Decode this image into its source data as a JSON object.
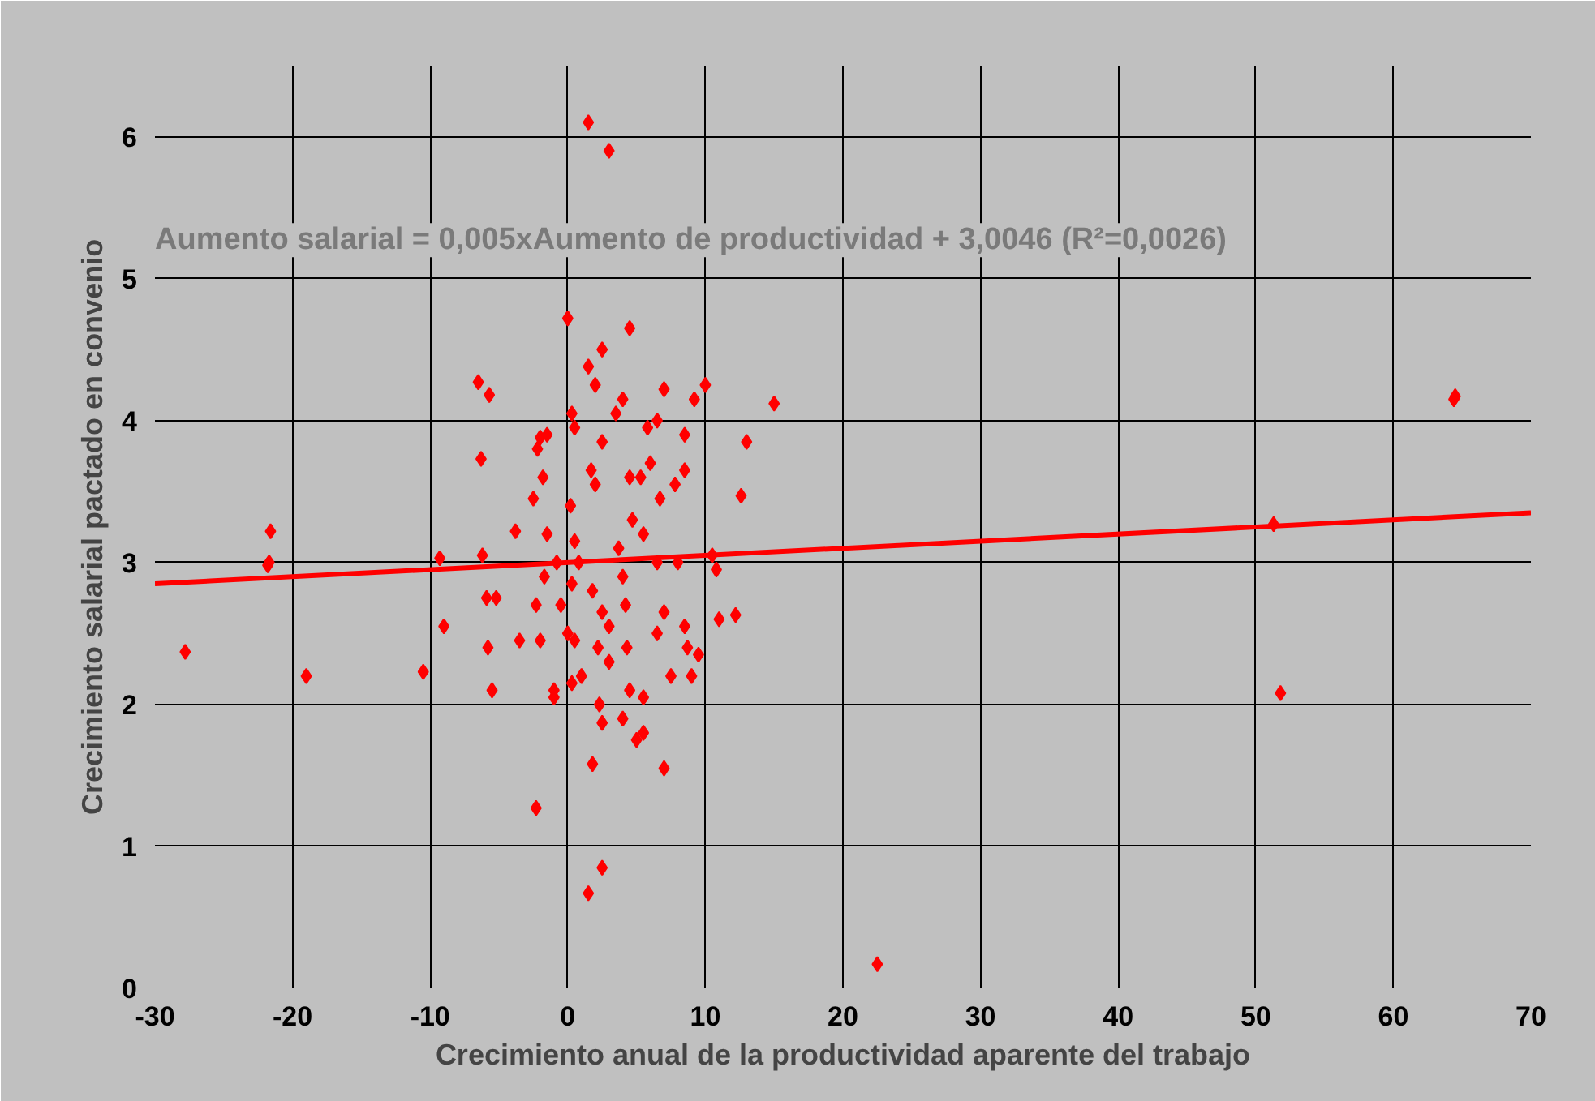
{
  "chart_data": {
    "type": "scatter",
    "xlabel": "Crecimiento anual de la productividad aparente del trabajo",
    "ylabel": "Crecimiento salarial pactado en convenio",
    "annotations": [
      "Aumento salarial = 0,005xAumento de productividad + 3,0046 (R²=0,0026)"
    ],
    "xlim": [
      -30,
      70
    ],
    "ylim": [
      0,
      6.5
    ],
    "xticks": [
      -30,
      -20,
      -10,
      0,
      10,
      20,
      30,
      40,
      50,
      60,
      70
    ],
    "yticks": [
      0,
      1,
      2,
      3,
      4,
      5,
      6
    ],
    "grid": true,
    "marker": "diamond",
    "series": [
      {
        "color": "#ff0000",
        "x": [
          -27.8,
          -21.6,
          -21.8,
          -21.7,
          -19,
          -10.5,
          -9.3,
          -9,
          -6.5,
          -6.3,
          -6.2,
          -5.9,
          -5.7,
          -5.5,
          -5.8,
          -5.2,
          -3.8,
          -3.5,
          -2.5,
          -2.2,
          -2,
          -1.8,
          -1.5,
          -2.3,
          -2,
          -1.7,
          -1,
          -1,
          -0.8,
          -0.5,
          -2.3,
          -1.5,
          0,
          0.3,
          0.5,
          0.2,
          0.5,
          0.8,
          0.3,
          0,
          0.5,
          1,
          0.3,
          1.5,
          3,
          1.5,
          2,
          2.5,
          1.7,
          2,
          2.5,
          1.8,
          2.5,
          3,
          2.2,
          3,
          2.3,
          1.8,
          2.5,
          2.5,
          1.5,
          4.5,
          3.5,
          4,
          4.5,
          4.7,
          3.7,
          4,
          4.2,
          4.3,
          4.5,
          4,
          5,
          5.5,
          5.5,
          5.8,
          5.3,
          6.5,
          7,
          6.7,
          6.5,
          6.5,
          7,
          7,
          5.5,
          6,
          7.8,
          8.5,
          8.5,
          8,
          7.5,
          8.5,
          8.7,
          9,
          9.5,
          9.2,
          10,
          10.5,
          10.8,
          11,
          12.2,
          12.6,
          13,
          15,
          22.5,
          51.3,
          51.8,
          64.5,
          64.4
        ],
        "values": [
          2.37,
          3.22,
          2.98,
          3.0,
          2.2,
          2.23,
          3.03,
          2.55,
          4.27,
          3.73,
          3.05,
          2.75,
          4.18,
          2.1,
          2.4,
          2.75,
          3.22,
          2.45,
          3.45,
          3.8,
          3.88,
          3.6,
          3.2,
          2.7,
          2.45,
          2.9,
          2.1,
          2.05,
          3.0,
          2.7,
          1.27,
          3.9,
          4.72,
          4.05,
          3.95,
          3.4,
          3.15,
          3.0,
          2.85,
          2.5,
          2.45,
          2.2,
          2.15,
          6.1,
          5.9,
          4.38,
          4.25,
          4.5,
          3.65,
          3.55,
          3.85,
          2.8,
          2.65,
          2.55,
          2.4,
          2.3,
          2.0,
          1.58,
          1.87,
          0.85,
          0.67,
          4.65,
          4.05,
          4.15,
          3.6,
          3.3,
          3.1,
          2.9,
          2.7,
          2.4,
          2.1,
          1.9,
          1.75,
          1.8,
          2.05,
          3.95,
          3.6,
          4.0,
          4.22,
          3.45,
          3.0,
          2.5,
          2.65,
          1.55,
          3.2,
          3.7,
          3.55,
          3.9,
          3.65,
          3.0,
          2.2,
          2.55,
          2.4,
          2.2,
          2.35,
          4.15,
          4.25,
          3.05,
          2.95,
          2.6,
          2.63,
          3.47,
          3.85,
          4.12,
          0.17,
          3.27,
          2.08,
          4.17,
          4.15
        ]
      },
      {
        "type": "line",
        "marker": "none",
        "color": "#ff0000",
        "x": [
          -30,
          70
        ],
        "values": [
          2.85,
          3.35
        ]
      }
    ]
  }
}
